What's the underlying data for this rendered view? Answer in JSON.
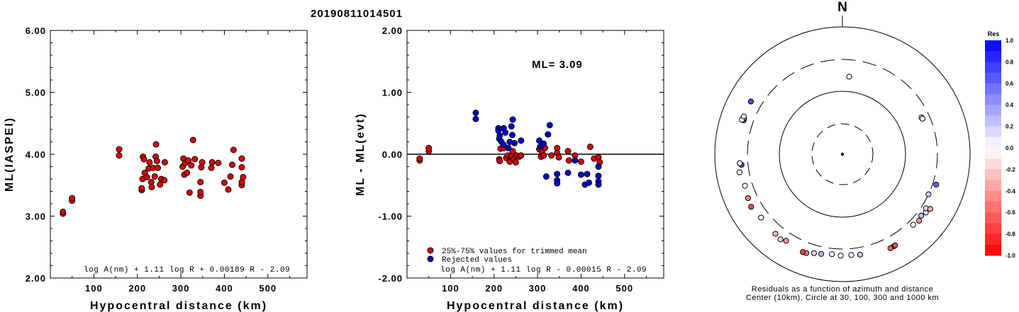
{
  "title": "20190811014501",
  "chart_data": [
    {
      "type": "scatter",
      "ylabel": "ML(IASPEI)",
      "xlabel": "Hypocentral distance (km)",
      "xlim": [
        0,
        590
      ],
      "ylim": [
        2.0,
        6.0
      ],
      "xticks": [
        "100",
        "200",
        "300",
        "400",
        "500"
      ],
      "yticks": [
        "2.00",
        "3.00",
        "4.00",
        "5.00",
        "6.00"
      ],
      "formula": "log A(nm) + 1.11 log R + 0.00189 R - 2.09",
      "color": "#dd0000",
      "points": [
        [
          29,
          3.04
        ],
        [
          29,
          3.07
        ],
        [
          50,
          3.25
        ],
        [
          50,
          3.29
        ],
        [
          158,
          4.08
        ],
        [
          158,
          3.98
        ],
        [
          210,
          3.42
        ],
        [
          210,
          3.45
        ],
        [
          212,
          3.6
        ],
        [
          213,
          3.96
        ],
        [
          215,
          3.92
        ],
        [
          217,
          3.7
        ],
        [
          222,
          3.63
        ],
        [
          226,
          3.77
        ],
        [
          228,
          3.87
        ],
        [
          232,
          3.55
        ],
        [
          233,
          3.47
        ],
        [
          236,
          3.78
        ],
        [
          240,
          3.64
        ],
        [
          242,
          3.96
        ],
        [
          243,
          4.16
        ],
        [
          245,
          3.89
        ],
        [
          247,
          3.78
        ],
        [
          252,
          3.51
        ],
        [
          255,
          3.6
        ],
        [
          262,
          3.58
        ],
        [
          263,
          3.87
        ],
        [
          304,
          3.8
        ],
        [
          306,
          3.93
        ],
        [
          308,
          3.67
        ],
        [
          310,
          3.86
        ],
        [
          314,
          3.7
        ],
        [
          317,
          3.9
        ],
        [
          320,
          3.38
        ],
        [
          324,
          3.82
        ],
        [
          328,
          4.23
        ],
        [
          332,
          3.92
        ],
        [
          345,
          3.55
        ],
        [
          345,
          3.33
        ],
        [
          345,
          3.39
        ],
        [
          347,
          3.79
        ],
        [
          349,
          3.87
        ],
        [
          370,
          3.78
        ],
        [
          372,
          3.87
        ],
        [
          386,
          3.86
        ],
        [
          400,
          3.54
        ],
        [
          409,
          3.43
        ],
        [
          414,
          3.64
        ],
        [
          418,
          3.83
        ],
        [
          421,
          4.07
        ],
        [
          440,
          3.93
        ],
        [
          440,
          3.79
        ],
        [
          440,
          3.5
        ],
        [
          440,
          3.55
        ],
        [
          443,
          3.63
        ]
      ]
    },
    {
      "type": "scatter",
      "ylabel": "ML - ML(evt)",
      "xlabel": "Hypocentral distance (km)",
      "xlim": [
        0,
        590
      ],
      "ylim": [
        -2.0,
        2.0
      ],
      "xticks": [
        "100",
        "200",
        "300",
        "400",
        "500"
      ],
      "yticks": [
        "-2.00",
        "-1.00",
        "0.00",
        "1.00",
        "2.00"
      ],
      "annotation": "ML= 3.09",
      "formula": "log A(nm) + 1.11 log R - 0.00015 R - 2.09",
      "series": [
        {
          "name": "25%-75% values for trimmed mean",
          "color": "#dd0000",
          "points": [
            [
              29,
              -0.1
            ],
            [
              29,
              -0.07
            ],
            [
              50,
              0.05
            ],
            [
              50,
              0.1
            ],
            [
              212,
              -0.08
            ],
            [
              213,
              -0.11
            ],
            [
              215,
              0.09
            ],
            [
              222,
              0.1
            ],
            [
              228,
              -0.06
            ],
            [
              232,
              -0.02
            ],
            [
              236,
              -0.12
            ],
            [
              240,
              -0.03
            ],
            [
              243,
              0.05
            ],
            [
              245,
              -0.08
            ],
            [
              250,
              -0.13
            ],
            [
              252,
              -0.02
            ],
            [
              258,
              -0.04
            ],
            [
              262,
              -0.02
            ],
            [
              304,
              0.08
            ],
            [
              306,
              0.12
            ],
            [
              308,
              -0.04
            ],
            [
              310,
              0.04
            ],
            [
              314,
              -0.02
            ],
            [
              317,
              0.1
            ],
            [
              332,
              -0.02
            ],
            [
              345,
              0.1
            ],
            [
              345,
              0.02
            ],
            [
              349,
              -0.05
            ],
            [
              370,
              0.05
            ],
            [
              372,
              -0.1
            ],
            [
              386,
              -0.02
            ],
            [
              400,
              -0.12
            ],
            [
              421,
              0.12
            ],
            [
              430,
              -0.07
            ],
            [
              440,
              -0.05
            ],
            [
              443,
              -0.13
            ]
          ]
        },
        {
          "name": "Rejected values",
          "color": "#0000cc",
          "points": [
            [
              158,
              0.57
            ],
            [
              158,
              0.67
            ],
            [
              210,
              0.42
            ],
            [
              210,
              0.38
            ],
            [
              212,
              0.25
            ],
            [
              213,
              0.3
            ],
            [
              217,
              0.2
            ],
            [
              222,
              0.42
            ],
            [
              222,
              0.15
            ],
            [
              226,
              0.35
            ],
            [
              233,
              0.1
            ],
            [
              236,
              0.2
            ],
            [
              240,
              0.45
            ],
            [
              242,
              0.31
            ],
            [
              243,
              0.56
            ],
            [
              247,
              0.18
            ],
            [
              262,
              0.22
            ],
            [
              304,
              0.22
            ],
            [
              308,
              0.13
            ],
            [
              314,
              0.17
            ],
            [
              320,
              -0.36
            ],
            [
              324,
              0.32
            ],
            [
              328,
              0.47
            ],
            [
              345,
              -0.42
            ],
            [
              345,
              -0.47
            ],
            [
              345,
              -0.32
            ],
            [
              370,
              -0.3
            ],
            [
              386,
              -0.1
            ],
            [
              400,
              -0.33
            ],
            [
              409,
              -0.49
            ],
            [
              414,
              -0.32
            ],
            [
              418,
              -0.46
            ],
            [
              440,
              -0.2
            ],
            [
              440,
              -0.35
            ],
            [
              440,
              -0.44
            ],
            [
              440,
              -0.49
            ]
          ]
        }
      ]
    },
    {
      "type": "scatter",
      "north_label": "N",
      "caption_line1": "Residuals as a function of azimuth and distance",
      "caption_line2": "Center (10km), Circle at 30, 100, 300 and 1000 km",
      "colorbar_title": "Res",
      "colorbar_ticks": [
        "1.0",
        "0.8",
        "0.6",
        "0.4",
        "0.2",
        "0.0",
        "-0.2",
        "-0.4",
        "-0.6",
        "-0.8",
        "-1.0"
      ],
      "stations_residual_azimuth_distance": [
        [
          0.0,
          5,
          167
        ],
        [
          0.02,
          65,
          230
        ],
        [
          0.02,
          66,
          233
        ],
        [
          0.6,
          108,
          342
        ],
        [
          0.0,
          135,
          360
        ],
        [
          -0.4,
          131,
          382
        ],
        [
          0.1,
          125,
          385
        ],
        [
          0.15,
          123,
          355
        ],
        [
          0.2,
          115,
          300
        ],
        [
          0.25,
          128,
          360
        ],
        [
          -0.3,
          122,
          410
        ],
        [
          -0.8,
          151,
          443
        ],
        [
          -0.7,
          150,
          440
        ],
        [
          -0.6,
          153,
          445
        ],
        [
          0.2,
          170,
          390
        ],
        [
          0.0,
          175,
          380
        ],
        [
          0.0,
          181,
          383
        ],
        [
          0.0,
          186,
          370
        ],
        [
          0.3,
          192,
          390
        ],
        [
          -0.2,
          196,
          405
        ],
        [
          -0.5,
          200,
          440
        ],
        [
          -0.7,
          202,
          445
        ],
        [
          -0.4,
          213,
          410
        ],
        [
          -0.3,
          220,
          420
        ],
        [
          -0.2,
          216,
          440
        ],
        [
          0.0,
          232,
          405
        ],
        [
          -0.5,
          245,
          420
        ],
        [
          -0.7,
          240,
          440
        ],
        [
          0.0,
          252,
          395
        ],
        [
          0.0,
          260,
          425
        ],
        [
          0.7,
          264,
          380
        ],
        [
          0.0,
          265,
          405
        ],
        [
          0.6,
          289,
          425
        ],
        [
          0.5,
          290,
          430
        ],
        [
          0.0,
          289,
          455
        ],
        [
          0.0,
          291,
          445
        ],
        [
          0.7,
          300,
          445
        ]
      ]
    }
  ]
}
